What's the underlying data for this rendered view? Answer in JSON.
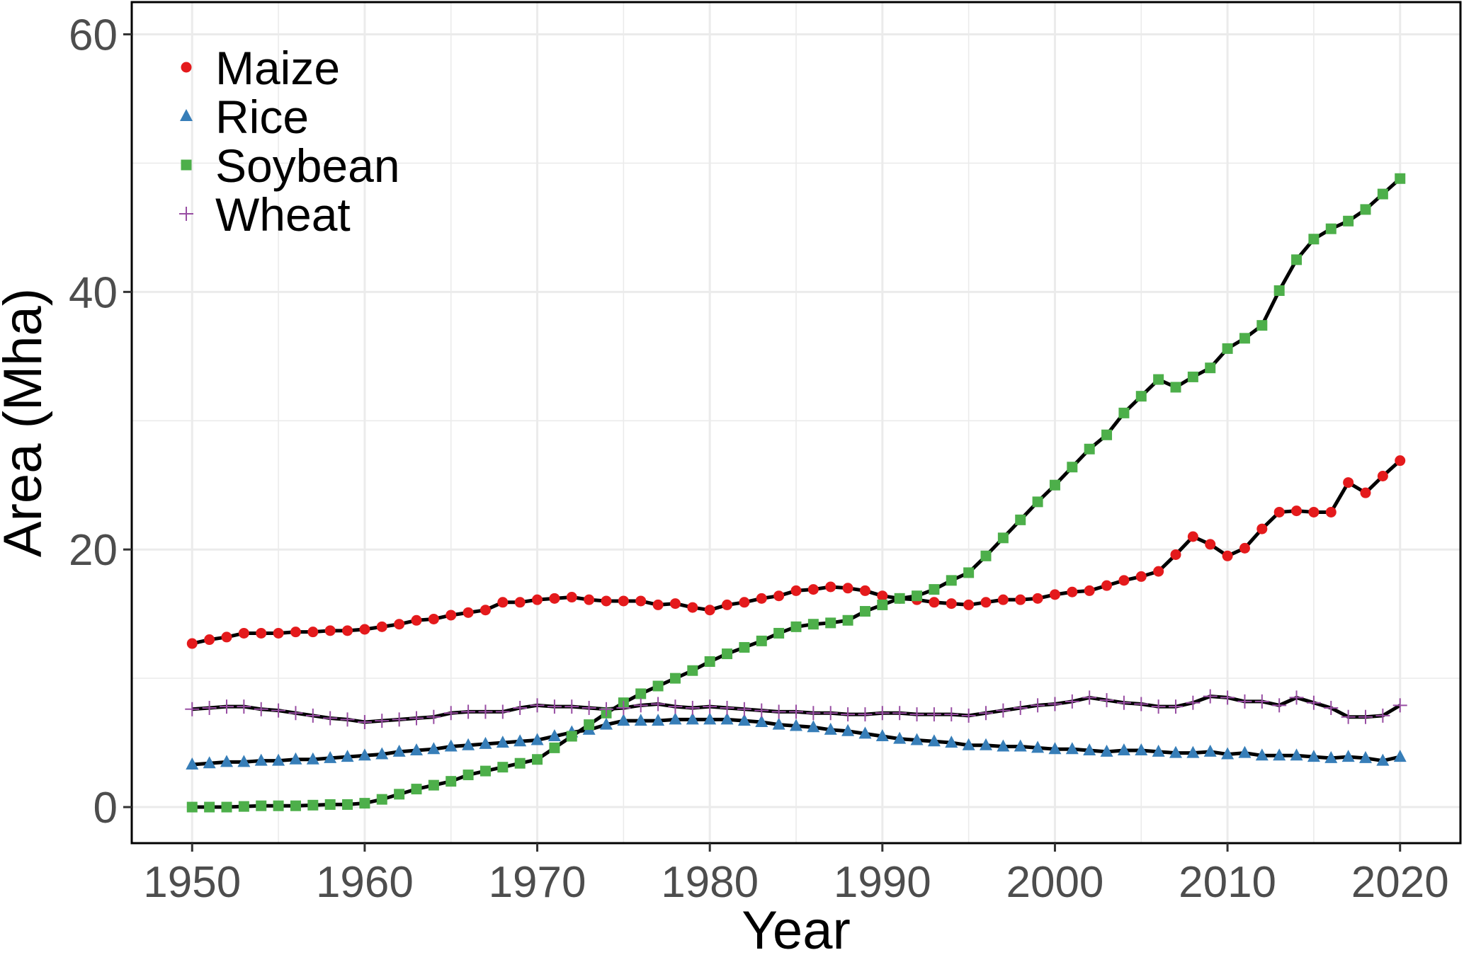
{
  "chart_data": {
    "type": "line",
    "title": "",
    "xlabel": "Year",
    "ylabel": "Area (Mha)",
    "xlim": [
      1946.5,
      2023.5
    ],
    "ylim": [
      -2.8,
      62.5
    ],
    "xticks": [
      1950,
      1960,
      1970,
      1980,
      1990,
      2000,
      2010,
      2020
    ],
    "yticks": [
      0,
      20,
      40,
      60
    ],
    "grid": true,
    "legend_position": "top-left",
    "x_start": 1950,
    "series": [
      {
        "name": "Maize",
        "color": "#E41A1C",
        "marker": "circle",
        "values": [
          12.7,
          13.0,
          13.2,
          13.5,
          13.5,
          13.5,
          13.6,
          13.6,
          13.7,
          13.7,
          13.8,
          14.0,
          14.2,
          14.5,
          14.6,
          14.9,
          15.1,
          15.3,
          15.9,
          15.9,
          16.1,
          16.2,
          16.3,
          16.1,
          16.0,
          16.0,
          16.0,
          15.7,
          15.8,
          15.5,
          15.3,
          15.7,
          15.9,
          16.2,
          16.4,
          16.8,
          16.9,
          17.1,
          17.0,
          16.8,
          16.4,
          16.2,
          16.1,
          15.9,
          15.8,
          15.7,
          15.9,
          16.1,
          16.1,
          16.2,
          16.5,
          16.7,
          16.8,
          17.2,
          17.6,
          17.9,
          18.3,
          19.6,
          21.0,
          20.4,
          19.5,
          20.1,
          21.6,
          22.9,
          23.0,
          22.9,
          22.9,
          25.2,
          24.4,
          25.7,
          26.9
        ]
      },
      {
        "name": "Rice",
        "color": "#377EB8",
        "marker": "triangle",
        "values": [
          3.3,
          3.4,
          3.5,
          3.5,
          3.6,
          3.6,
          3.7,
          3.7,
          3.8,
          3.9,
          4.0,
          4.1,
          4.3,
          4.4,
          4.5,
          4.7,
          4.8,
          4.9,
          5.0,
          5.1,
          5.2,
          5.5,
          5.8,
          6.0,
          6.4,
          6.7,
          6.7,
          6.7,
          6.8,
          6.8,
          6.8,
          6.8,
          6.7,
          6.6,
          6.4,
          6.3,
          6.2,
          6.0,
          5.9,
          5.7,
          5.5,
          5.3,
          5.2,
          5.1,
          5.0,
          4.8,
          4.8,
          4.7,
          4.7,
          4.6,
          4.5,
          4.5,
          4.4,
          4.3,
          4.4,
          4.4,
          4.3,
          4.2,
          4.2,
          4.3,
          4.1,
          4.2,
          4.0,
          4.0,
          4.0,
          3.9,
          3.8,
          3.9,
          3.8,
          3.6,
          3.9
        ]
      },
      {
        "name": "Soybean",
        "color": "#4DAF4A",
        "marker": "square",
        "values": [
          0.0,
          0.0,
          0.0,
          0.05,
          0.1,
          0.1,
          0.1,
          0.15,
          0.2,
          0.2,
          0.3,
          0.6,
          1.0,
          1.4,
          1.7,
          2.0,
          2.5,
          2.8,
          3.1,
          3.4,
          3.7,
          4.6,
          5.5,
          6.4,
          7.3,
          8.1,
          8.8,
          9.4,
          10.0,
          10.6,
          11.3,
          11.9,
          12.4,
          12.9,
          13.5,
          14.0,
          14.2,
          14.3,
          14.5,
          15.2,
          15.7,
          16.2,
          16.4,
          16.9,
          17.6,
          18.2,
          19.5,
          20.9,
          22.3,
          23.7,
          25.0,
          26.4,
          27.8,
          28.9,
          30.6,
          31.9,
          33.2,
          32.6,
          33.4,
          34.1,
          35.6,
          36.4,
          37.4,
          40.1,
          42.5,
          44.1,
          44.9,
          45.5,
          46.4,
          47.6,
          48.8
        ]
      },
      {
        "name": "Wheat",
        "color": "#984EA3",
        "marker": "plus",
        "values": [
          7.6,
          7.7,
          7.8,
          7.8,
          7.6,
          7.5,
          7.3,
          7.1,
          6.9,
          6.8,
          6.6,
          6.7,
          6.8,
          6.9,
          7.0,
          7.3,
          7.4,
          7.4,
          7.4,
          7.7,
          7.9,
          7.8,
          7.8,
          7.7,
          7.6,
          7.7,
          7.9,
          8.0,
          7.8,
          7.7,
          7.8,
          7.7,
          7.6,
          7.5,
          7.4,
          7.4,
          7.3,
          7.3,
          7.2,
          7.2,
          7.3,
          7.3,
          7.2,
          7.2,
          7.2,
          7.1,
          7.3,
          7.5,
          7.7,
          7.9,
          8.0,
          8.2,
          8.5,
          8.3,
          8.1,
          8.0,
          7.8,
          7.8,
          8.1,
          8.6,
          8.5,
          8.2,
          8.2,
          7.9,
          8.5,
          8.1,
          7.7,
          7.0,
          7.0,
          7.1,
          7.9
        ]
      }
    ]
  }
}
